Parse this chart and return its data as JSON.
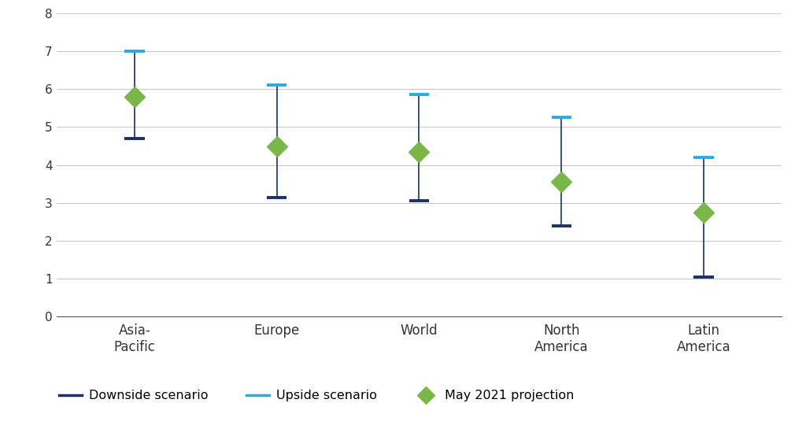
{
  "categories": [
    "Asia-\nPacific",
    "Europe",
    "World",
    "North\nAmerica",
    "Latin\nAmerica"
  ],
  "downside": [
    4.7,
    3.15,
    3.05,
    2.4,
    1.05
  ],
  "upside": [
    7.0,
    6.1,
    5.85,
    5.25,
    4.2
  ],
  "projection": [
    5.8,
    4.5,
    4.35,
    3.55,
    2.75
  ],
  "downside_color": "#1a2f6e",
  "upside_color": "#29abe2",
  "projection_color": "#7ab648",
  "line_color": "#1a2f6e",
  "bg_color": "#ffffff",
  "grid_color": "#c8c8c8",
  "ylim": [
    0,
    8
  ],
  "yticks": [
    0,
    1,
    2,
    3,
    4,
    5,
    6,
    7,
    8
  ],
  "legend_downside": "Downside scenario",
  "legend_upside": "Upside scenario",
  "legend_projection": "May 2021 projection",
  "linewidth": 1.2,
  "marker_size": 13,
  "cap_linewidth": 2.8,
  "cap_half_data": 0.07
}
